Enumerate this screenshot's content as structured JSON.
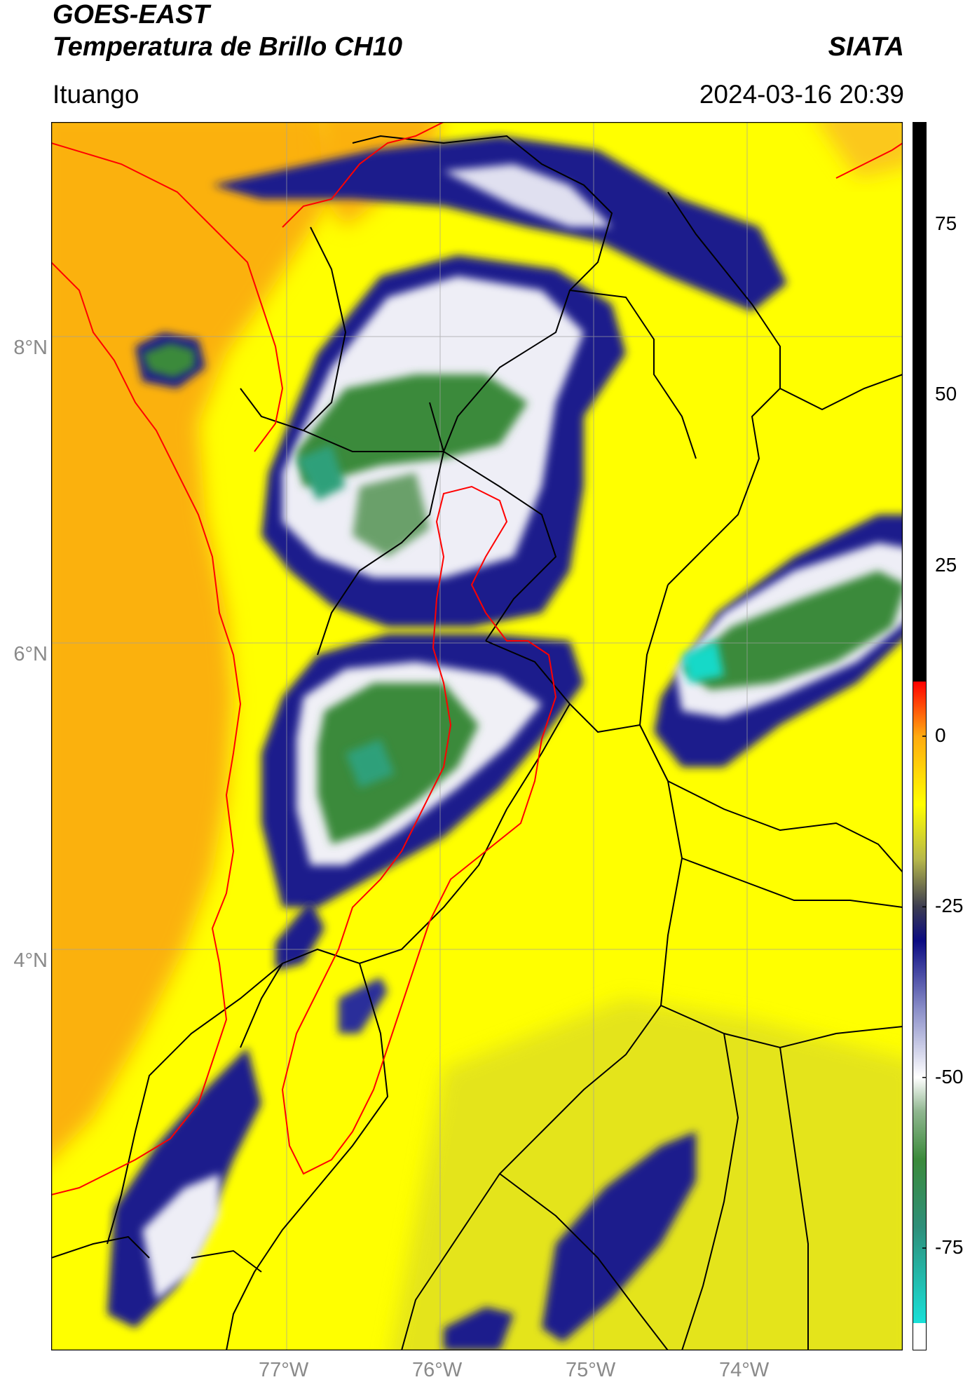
{
  "header": {
    "satellite": "GOES-EAST",
    "product": "Temperatura de Brillo CH10",
    "brand": "SIATA",
    "location": "Ituango",
    "datetime": "2024-03-16 20:39"
  },
  "map": {
    "lat_ticks": [
      "8°N",
      "6°N",
      "4°N"
    ],
    "lon_ticks": [
      "77°W",
      "76°W",
      "75°W",
      "74°W"
    ],
    "extent": {
      "lon_min": -78.55,
      "lon_max": -73.0,
      "lat_min": 2.55,
      "lat_max": 9.55
    },
    "colors": {
      "ocean_warm": "#fbb10f",
      "land_warm": "#ffff00",
      "cloud_dark_blue": "#1b1e8c",
      "cloud_white": "#f2f2f2",
      "cloud_green": "#3b8a3b",
      "cloud_cyan": "#19d9c8",
      "grid": "#a0a0a0",
      "border_black": "#000000",
      "border_red": "#ff0000"
    }
  },
  "colorbar": {
    "tick_labels": [
      "75",
      "50",
      "25",
      "0",
      "-25",
      "-50",
      "-75"
    ],
    "tick_values": [
      75,
      50,
      25,
      0,
      -25,
      -50,
      -75
    ],
    "range": [
      -90,
      90
    ],
    "stops": [
      {
        "value": -90,
        "color": "#ffffff"
      },
      {
        "value": -86,
        "color": "#ffffff"
      },
      {
        "value": -86,
        "color": "#19e0d8"
      },
      {
        "value": -72,
        "color": "#2e8f7a"
      },
      {
        "value": -62,
        "color": "#3b8a3b"
      },
      {
        "value": -55,
        "color": "#8fb68f"
      },
      {
        "value": -50,
        "color": "#ffffff"
      },
      {
        "value": -40,
        "color": "#8a8ec8"
      },
      {
        "value": -30,
        "color": "#0b0b82"
      },
      {
        "value": -25,
        "color": "#3c3c50"
      },
      {
        "value": -18,
        "color": "#b7b84a"
      },
      {
        "value": -10,
        "color": "#ffff00"
      },
      {
        "value": 0,
        "color": "#ffaa10"
      },
      {
        "value": 8,
        "color": "#ff0000"
      },
      {
        "value": 8,
        "color": "#000000"
      },
      {
        "value": 90,
        "color": "#000000"
      }
    ]
  }
}
